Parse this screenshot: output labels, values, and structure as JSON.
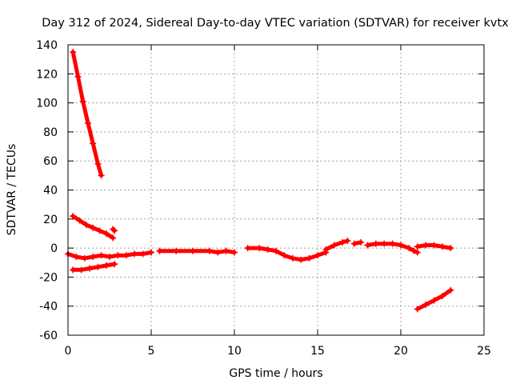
{
  "chart_data": {
    "type": "scatter",
    "title": "Day 312 of 2024, Sidereal Day-to-day VTEC variation (SDTVAR) for receiver kvtx",
    "xlabel": "GPS time / hours",
    "ylabel": "SDTVAR / TECUs",
    "xlim": [
      0,
      25
    ],
    "ylim": [
      -60,
      140
    ],
    "xticks": [
      0,
      5,
      10,
      15,
      20,
      25
    ],
    "yticks": [
      -60,
      -40,
      -20,
      0,
      20,
      40,
      60,
      80,
      100,
      120,
      140
    ],
    "grid": true,
    "legend": "none",
    "marker": "plus",
    "series_color": "#ff0000",
    "series": [
      {
        "x": [
          0.3,
          0.6,
          0.9,
          1.2,
          1.5,
          1.8,
          2.0
        ],
        "y": [
          135,
          118,
          101,
          86,
          72,
          58,
          50
        ]
      },
      {
        "x": [
          0.3,
          0.7,
          1.1,
          1.5,
          1.9,
          2.3,
          2.7
        ],
        "y": [
          22,
          19,
          16,
          14,
          12,
          10,
          7
        ]
      },
      {
        "x": [
          2.7,
          2.8
        ],
        "y": [
          13,
          12
        ]
      },
      {
        "x": [
          0.3,
          0.8,
          1.3,
          1.8,
          2.3,
          2.8
        ],
        "y": [
          -15,
          -15,
          -14,
          -13,
          -12,
          -11
        ]
      },
      {
        "x": [
          0.0,
          0.5,
          1.0,
          1.5,
          2.0,
          2.5,
          3.0,
          3.5,
          4.0,
          4.5,
          5.0
        ],
        "y": [
          -4,
          -6,
          -7,
          -6,
          -5,
          -6,
          -5,
          -5,
          -4,
          -4,
          -3
        ]
      },
      {
        "x": [
          5.5,
          6.5,
          7.5,
          8.5,
          9.0,
          9.5,
          10.0
        ],
        "y": [
          -2,
          -2,
          -2,
          -2,
          -3,
          -2,
          -3
        ]
      },
      {
        "x": [
          10.8,
          11.5,
          12.0,
          12.5,
          13.0,
          13.5,
          14.0,
          14.5,
          15.0,
          15.5
        ],
        "y": [
          0,
          0,
          -1,
          -2,
          -5,
          -7,
          -8,
          -7,
          -5,
          -3
        ]
      },
      {
        "x": [
          15.5,
          16.0,
          16.5,
          16.8
        ],
        "y": [
          -1,
          2,
          4,
          5
        ]
      },
      {
        "x": [
          17.2,
          17.6
        ],
        "y": [
          3,
          4
        ]
      },
      {
        "x": [
          18.0,
          18.5,
          19.0,
          19.5,
          20.0,
          20.5,
          20.8,
          21.0
        ],
        "y": [
          2,
          3,
          3,
          3,
          2,
          0,
          -2,
          -3
        ]
      },
      {
        "x": [
          21.0,
          21.5,
          22.0,
          22.5,
          23.0
        ],
        "y": [
          1,
          2,
          2,
          1,
          0
        ]
      },
      {
        "x": [
          21.0,
          21.5,
          22.0,
          22.5,
          23.0
        ],
        "y": [
          -42,
          -39,
          -36,
          -33,
          -29
        ]
      }
    ]
  }
}
